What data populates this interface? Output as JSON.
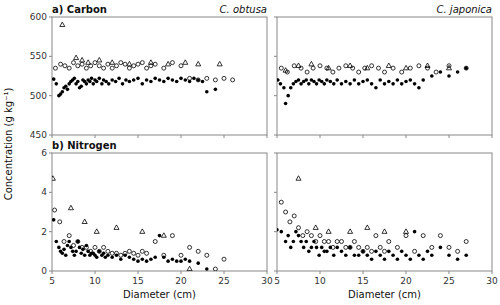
{
  "chart_data": [
    {
      "type": "scatter",
      "title": "a) Carbon",
      "subtitle": "C. obtusa",
      "ylabel": "Concentration (g kg⁻¹)",
      "xlim": [
        5,
        30
      ],
      "xticks": [
        5,
        10,
        15,
        20,
        25,
        30
      ],
      "ylim": [
        450,
        600
      ],
      "yticks": [
        450,
        500,
        550,
        600
      ],
      "tick_labels": "y",
      "series": [
        {
          "marker": "filled-circle",
          "color": "black",
          "x": [
            5.2,
            5.5,
            5.8,
            6.0,
            6.2,
            6.4,
            6.6,
            6.8,
            7.0,
            7.2,
            7.4,
            7.6,
            7.8,
            8.0,
            8.2,
            8.4,
            8.6,
            8.8,
            9.0,
            9.2,
            9.4,
            9.6,
            9.8,
            10.0,
            10.2,
            10.5,
            10.8,
            11.0,
            11.3,
            11.6,
            12.0,
            12.4,
            12.8,
            13.2,
            13.6,
            14.0,
            14.5,
            15.0,
            15.5,
            16.0,
            16.5,
            17.0,
            17.5,
            18.0,
            18.5,
            19.0,
            19.5,
            20.0,
            20.5,
            21.0,
            21.5,
            22.0,
            22.5,
            23.0,
            24.0
          ],
          "values": [
            521,
            515,
            500,
            502,
            505,
            510,
            512,
            508,
            515,
            518,
            520,
            522,
            515,
            518,
            510,
            512,
            520,
            518,
            515,
            520,
            518,
            522,
            515,
            520,
            518,
            522,
            515,
            520,
            518,
            515,
            520,
            518,
            522,
            515,
            520,
            518,
            520,
            522,
            515,
            520,
            518,
            522,
            520,
            518,
            522,
            520,
            518,
            522,
            520,
            518,
            522,
            520,
            518,
            505,
            508
          ]
        },
        {
          "marker": "open-circle",
          "color": "black",
          "x": [
            5.4,
            6.0,
            6.5,
            7.0,
            7.5,
            8.0,
            8.5,
            9.0,
            9.5,
            10.0,
            10.5,
            11.0,
            11.5,
            12.0,
            12.5,
            13.0,
            13.5,
            14.0,
            14.5,
            15.0,
            15.5,
            16.0,
            16.5,
            17.0,
            18.0,
            19.0,
            20.0,
            21.0,
            22.0,
            23.0,
            24.0,
            25.0,
            26.0
          ],
          "values": [
            535,
            540,
            538,
            535,
            542,
            538,
            540,
            535,
            538,
            542,
            538,
            535,
            540,
            535,
            538,
            542,
            540,
            535,
            538,
            540,
            542,
            535,
            538,
            540,
            535,
            542,
            538,
            522,
            520,
            522,
            520,
            522,
            520
          ]
        },
        {
          "marker": "open-triangle",
          "color": "black",
          "x": [
            6.2,
            7.8,
            8.5,
            9.2,
            10.5,
            12.0,
            14.0,
            16.5,
            18.5,
            20.5,
            22.0,
            24.5
          ],
          "values": [
            590,
            548,
            545,
            542,
            545,
            542,
            540,
            542,
            540,
            542,
            540,
            540
          ]
        }
      ]
    },
    {
      "type": "scatter",
      "subtitle": "C. japonica",
      "xlim": [
        5,
        30
      ],
      "xticks": [
        5,
        10,
        15,
        20,
        25,
        30
      ],
      "ylim": [
        450,
        600
      ],
      "yticks": [
        450,
        500,
        550,
        600
      ],
      "tick_labels": false,
      "series": [
        {
          "marker": "filled-circle",
          "color": "black",
          "x": [
            5.1,
            5.4,
            5.8,
            6.0,
            6.3,
            6.6,
            6.9,
            7.2,
            7.5,
            7.8,
            8.1,
            8.4,
            8.7,
            9.0,
            9.3,
            9.6,
            9.9,
            10.2,
            10.5,
            10.8,
            11.2,
            11.6,
            12.0,
            12.5,
            13.0,
            13.5,
            14.0,
            14.5,
            15.0,
            15.5,
            16.0,
            16.5,
            17.0,
            17.5,
            18.0,
            18.5,
            19.0,
            19.5,
            20.0,
            20.5,
            21.0,
            21.5,
            22.0,
            23.0,
            24.0,
            25.0,
            26.0,
            27.0
          ],
          "values": [
            520,
            515,
            510,
            490,
            500,
            510,
            515,
            518,
            520,
            515,
            518,
            520,
            515,
            520,
            518,
            515,
            520,
            518,
            515,
            520,
            518,
            515,
            520,
            515,
            518,
            515,
            520,
            515,
            518,
            520,
            515,
            510,
            520,
            515,
            518,
            515,
            520,
            515,
            518,
            520,
            515,
            510,
            520,
            525,
            530,
            525,
            530,
            535
          ]
        },
        {
          "marker": "open-circle",
          "color": "black",
          "x": [
            5.5,
            6.2,
            7.0,
            7.8,
            8.5,
            9.2,
            10.0,
            10.8,
            11.5,
            12.2,
            13.0,
            13.8,
            14.5,
            15.2,
            16.0,
            16.8,
            17.5,
            18.5,
            19.5,
            20.5,
            21.5,
            22.5,
            23.5,
            25.0,
            27.0
          ],
          "values": [
            535,
            530,
            538,
            535,
            530,
            535,
            538,
            535,
            530,
            535,
            538,
            535,
            530,
            535,
            538,
            535,
            530,
            535,
            530,
            535,
            538,
            535,
            530,
            538,
            535
          ]
        },
        {
          "marker": "open-triangle",
          "color": "black",
          "x": [
            6.0,
            7.5,
            9.0,
            11.0,
            13.5,
            15.5,
            18.0,
            20.0,
            22.5,
            25.0
          ],
          "values": [
            532,
            538,
            540,
            535,
            538,
            535,
            538,
            535,
            538,
            535
          ]
        }
      ]
    },
    {
      "type": "scatter",
      "title": "b) Nitrogen",
      "xlabel": "Diameter (cm)",
      "xlim": [
        5,
        30
      ],
      "xticks": [
        5,
        10,
        15,
        20,
        25,
        30
      ],
      "ylim": [
        0,
        6
      ],
      "yticks": [
        0,
        2,
        4,
        6
      ],
      "tick_labels": true,
      "series": [
        {
          "marker": "filled-circle",
          "color": "black",
          "x": [
            5.2,
            5.5,
            5.8,
            6.0,
            6.2,
            6.4,
            6.6,
            6.8,
            7.0,
            7.2,
            7.4,
            7.6,
            7.8,
            8.0,
            8.2,
            8.4,
            8.6,
            8.8,
            9.0,
            9.2,
            9.4,
            9.6,
            9.8,
            10.0,
            10.2,
            10.5,
            10.8,
            11.0,
            11.2,
            11.5,
            12.0,
            12.5,
            13.0,
            13.5,
            14.0,
            14.5,
            15.0,
            15.5,
            16.0,
            16.5,
            17.0,
            17.5,
            18.0,
            18.5,
            19.0,
            19.5,
            20.0,
            20.5,
            21.0,
            22.0,
            23.0
          ],
          "values": [
            2.6,
            1.5,
            1.2,
            1.0,
            0.9,
            1.1,
            0.8,
            1.3,
            1.5,
            1.2,
            1.0,
            0.8,
            1.0,
            1.5,
            1.2,
            0.9,
            1.1,
            0.8,
            1.3,
            1.0,
            0.8,
            0.9,
            0.9,
            0.8,
            0.7,
            1.0,
            0.8,
            0.9,
            0.7,
            0.8,
            0.7,
            0.8,
            0.6,
            0.8,
            0.7,
            0.6,
            0.5,
            0.6,
            0.5,
            0.6,
            0.7,
            1.8,
            0.7,
            0.5,
            0.6,
            0.5,
            0.5,
            0.6,
            0.5,
            0.4,
            0.1
          ]
        },
        {
          "marker": "open-circle",
          "color": "black",
          "x": [
            5.3,
            5.9,
            6.4,
            7.0,
            7.5,
            8.0,
            8.5,
            9.0,
            9.5,
            10.0,
            10.5,
            11.0,
            11.5,
            12.0,
            12.5,
            13.0,
            13.5,
            14.0,
            14.5,
            15.0,
            15.5,
            16.0,
            17.0,
            18.0,
            19.0,
            20.0,
            21.0,
            22.0,
            23.0,
            24.0,
            25.0
          ],
          "values": [
            3.1,
            2.5,
            1.5,
            1.8,
            1.3,
            1.5,
            1.2,
            1.2,
            1.0,
            1.2,
            1.0,
            1.2,
            1.0,
            0.9,
            0.9,
            0.8,
            0.9,
            1.0,
            0.9,
            0.8,
            1.0,
            0.9,
            1.5,
            0.8,
            1.8,
            0.8,
            1.2,
            1.0,
            0.8,
            0.1,
            0.6
          ]
        },
        {
          "marker": "open-triangle",
          "color": "black",
          "x": [
            5.1,
            7.2,
            8.8,
            10.2,
            12.5,
            15.5,
            18.0,
            21.0
          ],
          "values": [
            4.7,
            3.2,
            2.5,
            2.0,
            2.2,
            2.0,
            1.8,
            0.1
          ]
        }
      ]
    },
    {
      "type": "scatter",
      "xlabel": "Diameter (cm)",
      "xlim": [
        5,
        30
      ],
      "xticks": [
        5,
        10,
        15,
        20,
        25,
        30
      ],
      "ylim": [
        0,
        6
      ],
      "yticks": [
        0,
        2,
        4,
        6
      ],
      "tick_labels": "x",
      "series": [
        {
          "marker": "filled-circle",
          "color": "black",
          "x": [
            5.0,
            5.5,
            6.0,
            6.3,
            6.6,
            6.9,
            7.2,
            7.5,
            7.8,
            8.1,
            8.4,
            8.7,
            9.0,
            9.3,
            9.6,
            9.9,
            10.2,
            10.5,
            10.8,
            11.2,
            11.6,
            12.0,
            12.5,
            13.0,
            13.5,
            14.0,
            14.5,
            15.0,
            15.5,
            16.0,
            16.5,
            17.0,
            17.5,
            18.0,
            18.5,
            19.0,
            19.5,
            20.0,
            20.5,
            21.0,
            21.5,
            22.0,
            22.5,
            23.0,
            24.0,
            25.0,
            26.0,
            27.0
          ],
          "values": [
            2.1,
            2.0,
            1.5,
            1.8,
            1.2,
            1.5,
            2.0,
            1.8,
            1.5,
            1.2,
            1.5,
            1.0,
            1.2,
            1.5,
            1.2,
            0.8,
            1.2,
            1.0,
            1.0,
            1.2,
            0.8,
            1.2,
            1.0,
            0.8,
            1.2,
            0.8,
            0.8,
            1.0,
            0.8,
            0.6,
            1.0,
            0.8,
            0.6,
            1.0,
            0.8,
            0.6,
            1.0,
            0.8,
            0.6,
            2.0,
            0.8,
            0.6,
            1.0,
            0.8,
            1.2,
            0.8,
            0.6,
            0.8
          ]
        },
        {
          "marker": "open-circle",
          "color": "black",
          "x": [
            5.5,
            6.0,
            6.5,
            7.0,
            7.5,
            8.0,
            8.5,
            9.0,
            9.5,
            10.0,
            10.5,
            11.0,
            11.5,
            12.0,
            12.5,
            13.0,
            13.5,
            14.0,
            14.5,
            15.0,
            15.5,
            16.0,
            16.5,
            17.0,
            17.5,
            18.0,
            19.0,
            20.0,
            21.0,
            22.0,
            23.0,
            24.0,
            25.0,
            26.0,
            27.0
          ],
          "values": [
            3.5,
            3.0,
            2.5,
            2.8,
            2.2,
            1.8,
            2.0,
            1.8,
            1.5,
            1.8,
            1.5,
            1.5,
            1.2,
            1.5,
            1.5,
            1.2,
            1.2,
            1.5,
            1.2,
            1.0,
            1.2,
            1.0,
            1.8,
            1.2,
            1.0,
            1.5,
            1.2,
            1.8,
            1.0,
            1.8,
            1.2,
            1.8,
            1.2,
            1.0,
            1.5
          ]
        },
        {
          "marker": "open-triangle",
          "color": "black",
          "x": [
            7.5,
            9.5,
            11.0,
            13.5,
            15.5,
            17.5,
            20.0
          ],
          "values": [
            4.7,
            2.2,
            2.0,
            2.0,
            2.2,
            2.0,
            2.0
          ]
        }
      ]
    }
  ]
}
